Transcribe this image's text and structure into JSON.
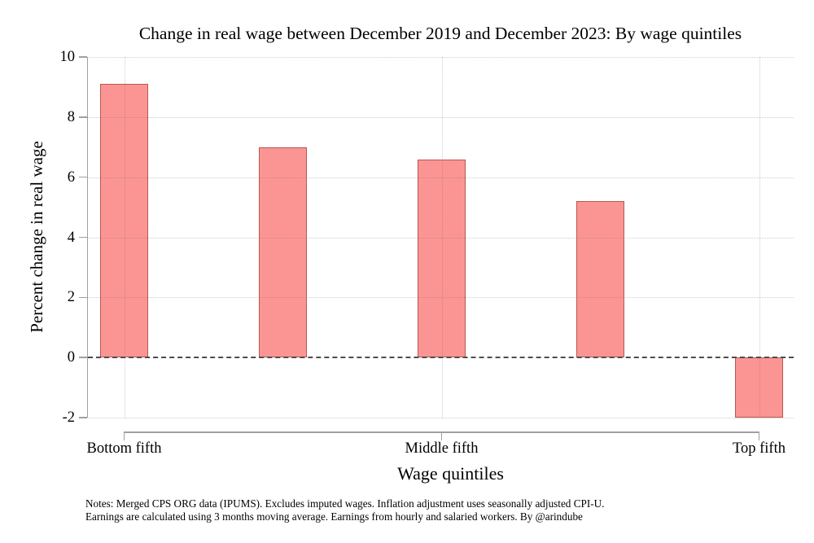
{
  "chart_data": {
    "type": "bar",
    "title": "Change in real wage between December 2019 and December 2023: By wage quintiles",
    "xlabel": "Wage quintiles",
    "ylabel": "Percent change in real wage",
    "ylim": [
      -2,
      10
    ],
    "y_ticks": [
      10,
      8,
      6,
      4,
      2,
      0,
      -2
    ],
    "values": [
      9.1,
      7.0,
      6.6,
      5.2,
      -2.0
    ],
    "x_tick_labels": [
      {
        "bar_index": 0,
        "label": "Bottom fifth"
      },
      {
        "bar_index": 2,
        "label": "Middle fifth"
      },
      {
        "bar_index": 4,
        "label": "Top fifth"
      }
    ],
    "grid": {
      "style": "dotted",
      "horizontal_at": [
        10,
        8,
        6,
        4,
        2,
        -2
      ],
      "vertical_at_bar_indices": [
        0,
        2,
        4
      ]
    },
    "zero_line": {
      "value": 0,
      "style": "dashed"
    },
    "legend": "none",
    "colors": {
      "bar_fill": "#fb9593",
      "bar_edge": "#b85752",
      "gridline": "#c6c6c6",
      "gridline_over_bar": "rgba(110,110,110,0.35)",
      "zero_line": "#4d4d4d",
      "axis": "#a0a0a0",
      "text": "#000000",
      "background": "#ffffff"
    }
  },
  "notes": {
    "line1": "Notes: Merged CPS ORG data (IPUMS). Excludes imputed wages. Inflation adjustment uses seasonally adjusted CPI-U.",
    "line2": "Earnings are calculated using 3 months moving average. Earnings from hourly and salaried workers. By @arindube"
  }
}
